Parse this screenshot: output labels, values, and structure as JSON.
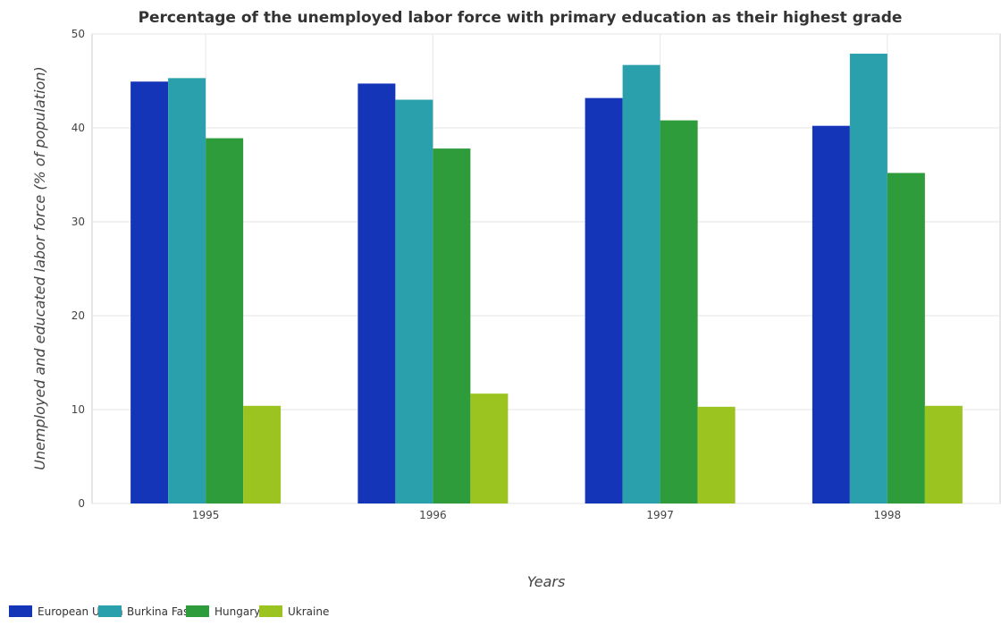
{
  "chart_data": {
    "type": "bar",
    "title": "Percentage of the unemployed labor force with primary education as their highest grade",
    "xlabel": "Years",
    "ylabel": "Unemployed and educated labor force (% of population)",
    "categories": [
      "1995",
      "1996",
      "1997",
      "1998"
    ],
    "ylim": [
      0,
      50
    ],
    "yticks": [
      0,
      10,
      20,
      30,
      40,
      50
    ],
    "grid": true,
    "legend_position": "bottom-left",
    "series": [
      {
        "name": "European Union",
        "color": "#1535b8",
        "values": [
          44.93,
          44.72,
          43.18,
          40.22
        ]
      },
      {
        "name": "Burkina Faso",
        "color": "#2aa0ac",
        "values": [
          45.3,
          43.0,
          46.7,
          47.9
        ]
      },
      {
        "name": "Hungary",
        "color": "#2f9c3c",
        "values": [
          38.9,
          37.8,
          40.8,
          35.2
        ]
      },
      {
        "name": "Ukraine",
        "color": "#9cc420",
        "values": [
          10.4,
          11.7,
          10.3,
          10.4
        ]
      }
    ]
  }
}
